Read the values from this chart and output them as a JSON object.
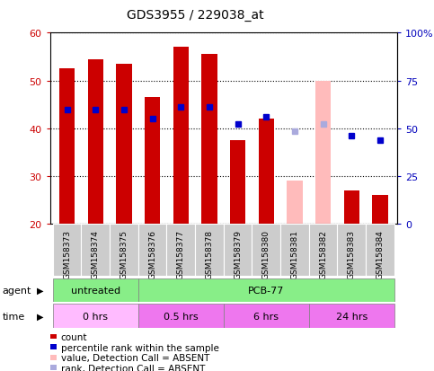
{
  "title": "GDS3955 / 229038_at",
  "samples": [
    "GSM158373",
    "GSM158374",
    "GSM158375",
    "GSM158376",
    "GSM158377",
    "GSM158378",
    "GSM158379",
    "GSM158380",
    "GSM158381",
    "GSM158382",
    "GSM158383",
    "GSM158384"
  ],
  "bar_bottom": 20,
  "count_values": [
    52.5,
    54.5,
    53.5,
    46.5,
    57,
    55.5,
    37.5,
    42,
    null,
    null,
    27,
    26
  ],
  "absent_count_values": [
    null,
    null,
    null,
    null,
    null,
    null,
    null,
    null,
    29,
    50,
    null,
    null
  ],
  "percentile_values": [
    44,
    44,
    44,
    42,
    44.5,
    44.5,
    41,
    42.5,
    null,
    null,
    38.5,
    37.5
  ],
  "absent_percentile_values": [
    null,
    null,
    null,
    null,
    null,
    null,
    null,
    null,
    39.5,
    41,
    null,
    null
  ],
  "bar_color": "#cc0000",
  "absent_bar_color": "#ffbbbb",
  "dot_color": "#0000cc",
  "absent_dot_color": "#aaaadd",
  "ylim_left": [
    20,
    60
  ],
  "yticks_left": [
    20,
    30,
    40,
    50,
    60
  ],
  "ytick_labels_left": [
    "20",
    "30",
    "40",
    "50",
    "60"
  ],
  "yticks_right_vals": [
    20,
    30,
    40,
    50,
    60
  ],
  "ytick_labels_right": [
    "0",
    "25",
    "50",
    "75",
    "100%"
  ],
  "left_axis_color": "#cc0000",
  "right_axis_color": "#0000bb",
  "grid_color": "#000000",
  "bg_color": "#ffffff",
  "plot_bg_color": "#ffffff",
  "agent_untreated_color": "#88ee88",
  "agent_pcb_color": "#88ee88",
  "time_0hrs_color": "#ffbbff",
  "time_other_color": "#ee77ee",
  "sample_label_bg": "#cccccc",
  "legend_items": [
    {
      "label": "count",
      "color": "#cc0000"
    },
    {
      "label": "percentile rank within the sample",
      "color": "#0000cc"
    },
    {
      "label": "value, Detection Call = ABSENT",
      "color": "#ffbbbb"
    },
    {
      "label": "rank, Detection Call = ABSENT",
      "color": "#aaaadd"
    }
  ]
}
